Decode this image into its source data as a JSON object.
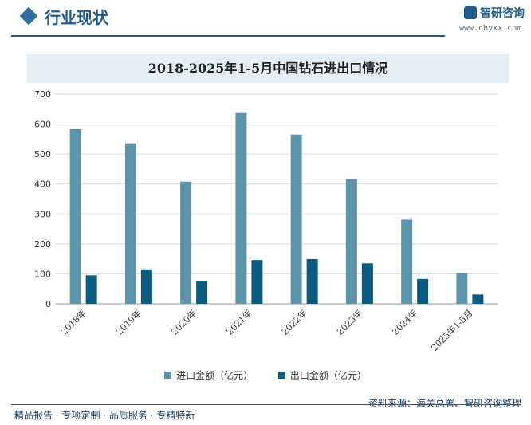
{
  "header": {
    "section_title": "行业现状",
    "logo_text": "智研咨询",
    "logo_url": "www.chyxx.com"
  },
  "colors": {
    "accent": "#1f5c8c",
    "import": "#5f93aa",
    "export": "#0d5c80",
    "title_band": "#e5eef6"
  },
  "chart_data": {
    "type": "bar",
    "title": "2018-2025年1-5月中国钻石进出口情况",
    "categories": [
      "2018年",
      "2019年",
      "2020年",
      "2021年",
      "2022年",
      "2023年",
      "2024年",
      "2025年1-5月"
    ],
    "series": [
      {
        "name": "进口金额（亿元）",
        "color": "#5f93aa",
        "values": [
          583,
          536,
          408,
          637,
          565,
          417,
          281,
          103
        ]
      },
      {
        "name": "出口金额（亿元）",
        "color": "#0d5c80",
        "values": [
          95,
          115,
          77,
          146,
          149,
          135,
          83,
          31
        ]
      }
    ],
    "ylim": [
      0,
      700
    ],
    "yticks": [
      0,
      100,
      200,
      300,
      400,
      500,
      600,
      700
    ],
    "grid": true,
    "legend_position": "bottom"
  },
  "footer": {
    "left": "精品报告 · 专项定制 · 品质服务 · 专精特新",
    "source": "资料来源：海关总署、智研咨询整理"
  }
}
